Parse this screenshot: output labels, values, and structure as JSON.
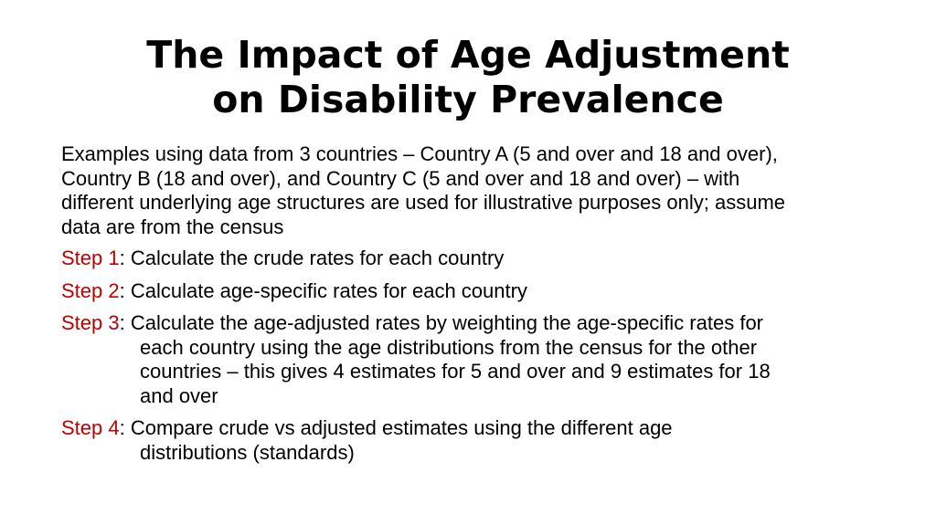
{
  "slide": {
    "title_line1": "The Impact of Age Adjustment",
    "title_line2": "on Disability Prevalence",
    "intro": [
      "Examples using data from 3 countries – Country A (5 and over and 18 and over),",
      "Country B (18 and over), and Country C (5 and over and 18 and over) – with",
      "different underlying age structures are used for illustrative purposes only; assume",
      "data are from the census"
    ],
    "steps": [
      {
        "label": "Step 1",
        "first": ": Calculate the crude rates for each country",
        "cont": []
      },
      {
        "label": "Step 2",
        "first": ": Calculate age-specific rates for each country",
        "cont": []
      },
      {
        "label": "Step 3",
        "first": ": Calculate the age-adjusted rates by weighting the age-specific rates for",
        "cont": [
          "each country using the age distributions from the census for the other",
          "countries – this gives 4 estimates for 5 and over and 9 estimates for 18",
          "and over"
        ]
      },
      {
        "label": "Step 4",
        "first": ": Compare crude vs adjusted estimates using the different age",
        "cont": [
          "distributions (standards)"
        ]
      }
    ],
    "accent_color": "#c00000"
  }
}
